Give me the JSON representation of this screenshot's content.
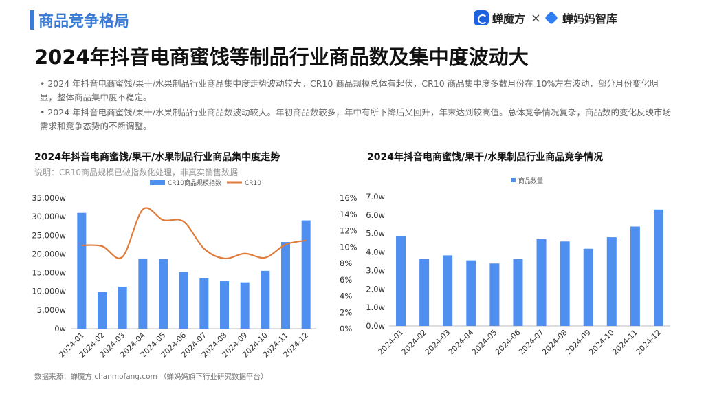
{
  "header": {
    "section": "商品竞争格局",
    "logo1": "蝉魔方",
    "separator": "×",
    "logo2": "蝉妈妈智库"
  },
  "headline": "2024年抖音电商蜜饯等制品行业商品数及集中度波动大",
  "bullets": [
    "• 2024 年抖音电商蜜饯/果干/水果制品行业商品集中度走势波动较大。CR10 商品规模总体有起伏，CR10 商品集中度多数月份在 10%左右波动，部分月份变化明显，整体商品集中度不稳定。",
    "• 2024 年抖音电商蜜饯/果干/水果制品行业商品数波动较大。年初商品数较多，年中有所下降后又回升，年末达到较高值。总体竞争情况复杂，商品数的变化反映市场需求和竞争态势的不断调整。"
  ],
  "footer": "数据来源：蝉魔方 chanmofang.com （蝉妈妈旗下行业研究数据平台）",
  "colors": {
    "bar": "#4f8ff0",
    "line": "#e07b39",
    "accent": "#3a7bd5"
  },
  "chart_data": [
    {
      "type": "bar+line",
      "title": "2024年抖音电商蜜饯/果干/水果制品行业商品集中度走势",
      "note": "说明：CR10商品规模已做指数化处理，非真实销售数据",
      "categories": [
        "2024-01",
        "2024-02",
        "2024-03",
        "2024-04",
        "2024-05",
        "2024-06",
        "2024-07",
        "2024-08",
        "2024-09",
        "2024-10",
        "2024-11",
        "2024-12"
      ],
      "series": [
        {
          "name": "CR10商品规模指数",
          "type": "bar",
          "axis": "left",
          "values": [
            31000,
            9800,
            11200,
            18800,
            18700,
            15200,
            13500,
            12700,
            12400,
            15500,
            23200,
            29000
          ]
        },
        {
          "name": "CR10",
          "type": "line",
          "axis": "right",
          "values": [
            10.2,
            10.1,
            8.8,
            14.6,
            13.3,
            13.1,
            9.8,
            8.6,
            9.2,
            8.7,
            10.3,
            10.8
          ]
        }
      ],
      "left_axis": {
        "ylim": [
          0,
          35000
        ],
        "ticks": [
          "0w",
          "5,000w",
          "10,000w",
          "15,000w",
          "20,000w",
          "25,000w",
          "30,000w",
          "35,000w"
        ]
      },
      "right_axis": {
        "ylim": [
          0,
          16
        ],
        "ticks": [
          "0%",
          "2%",
          "4%",
          "6%",
          "8%",
          "10%",
          "12%",
          "14%",
          "16%"
        ]
      },
      "legend": "top-center",
      "grid": false
    },
    {
      "type": "bar",
      "title": "2024年抖音电商蜜饯/果干/水果制品行业商品竞争情况",
      "categories": [
        "2024-01",
        "2024-02",
        "2024-03",
        "2024-04",
        "2024-05",
        "2024-06",
        "2024-07",
        "2024-08",
        "2024-09",
        "2024-10",
        "2024-11",
        "2024-12"
      ],
      "series": [
        {
          "name": "商品数量",
          "values": [
            4.85,
            3.62,
            3.82,
            3.55,
            3.38,
            3.63,
            4.7,
            4.57,
            4.18,
            4.8,
            5.38,
            6.3
          ]
        }
      ],
      "axis": {
        "ylim": [
          0,
          7
        ],
        "ticks": [
          "0.0w",
          "1.0w",
          "2.0w",
          "3.0w",
          "4.0w",
          "5.0w",
          "6.0w",
          "7.0w"
        ]
      },
      "legend": "top-center",
      "grid": false
    }
  ]
}
